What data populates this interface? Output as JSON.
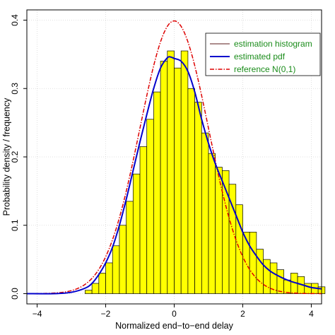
{
  "chart_data": {
    "type": "bar",
    "title": "",
    "xlabel": "Normalized end−to−end delay",
    "ylabel": "Probability density / frequency",
    "xlim": [
      -4.3,
      4.3
    ],
    "ylim": [
      -0.015,
      0.415
    ],
    "x_ticks": [
      -4,
      -2,
      0,
      2,
      4
    ],
    "x_tick_labels": [
      "−4",
      "−2",
      "0",
      "2",
      "4"
    ],
    "y_ticks": [
      0.0,
      0.1,
      0.2,
      0.3,
      0.4
    ],
    "y_tick_labels": [
      "0.0",
      "0.1",
      "0.2",
      "0.3",
      "0.4"
    ],
    "grid": true,
    "legend_position": "top-right",
    "legend": [
      "estimation histogram",
      "estimated pdf",
      "reference N(0,1)"
    ],
    "colors": {
      "bars": "#ffff00",
      "bar_edge": "#000000",
      "estimated_pdf": "#0000cc",
      "reference": "#dd0000",
      "legend_text": "#1a8c1a",
      "histogram_legend_line": "#5a1a1a"
    },
    "histogram": {
      "bin_width": 0.2,
      "bin_starts": [
        -2.6,
        -2.4,
        -2.2,
        -2.0,
        -1.8,
        -1.6,
        -1.4,
        -1.2,
        -1.0,
        -0.8,
        -0.6,
        -0.4,
        -0.2,
        0.0,
        0.2,
        0.4,
        0.6,
        0.8,
        1.0,
        1.2,
        1.4,
        1.6,
        1.8,
        2.0,
        2.2,
        2.4,
        2.6,
        2.8,
        3.0,
        3.2,
        3.4,
        3.6,
        3.8,
        4.0,
        4.2
      ],
      "values": [
        0.005,
        0.015,
        0.03,
        0.045,
        0.07,
        0.1,
        0.135,
        0.175,
        0.215,
        0.255,
        0.295,
        0.34,
        0.355,
        0.33,
        0.355,
        0.3,
        0.28,
        0.235,
        0.205,
        0.185,
        0.18,
        0.16,
        0.13,
        0.09,
        0.09,
        0.065,
        0.05,
        0.045,
        0.035,
        0.02,
        0.03,
        0.025,
        0.015,
        0.015,
        0.01
      ]
    },
    "series": [
      {
        "name": "estimated pdf",
        "x": [
          -4.3,
          -3.5,
          -3.0,
          -2.6,
          -2.4,
          -2.2,
          -2.0,
          -1.8,
          -1.6,
          -1.4,
          -1.2,
          -1.0,
          -0.8,
          -0.6,
          -0.4,
          -0.2,
          -0.1,
          0.0,
          0.2,
          0.4,
          0.6,
          0.8,
          1.0,
          1.2,
          1.4,
          1.6,
          1.8,
          2.0,
          2.2,
          2.4,
          2.6,
          2.8,
          3.0,
          3.2,
          3.4,
          3.6,
          3.8,
          4.0,
          4.3
        ],
        "y": [
          0.0,
          0.0,
          0.002,
          0.008,
          0.015,
          0.028,
          0.045,
          0.068,
          0.1,
          0.138,
          0.18,
          0.222,
          0.262,
          0.3,
          0.33,
          0.345,
          0.346,
          0.344,
          0.34,
          0.325,
          0.295,
          0.255,
          0.22,
          0.19,
          0.165,
          0.14,
          0.115,
          0.09,
          0.07,
          0.055,
          0.042,
          0.033,
          0.027,
          0.022,
          0.018,
          0.015,
          0.012,
          0.009,
          0.007
        ]
      },
      {
        "name": "reference N(0,1)",
        "function": "standard_normal_pdf",
        "x_range": [
          -4.3,
          4.3
        ]
      }
    ]
  }
}
